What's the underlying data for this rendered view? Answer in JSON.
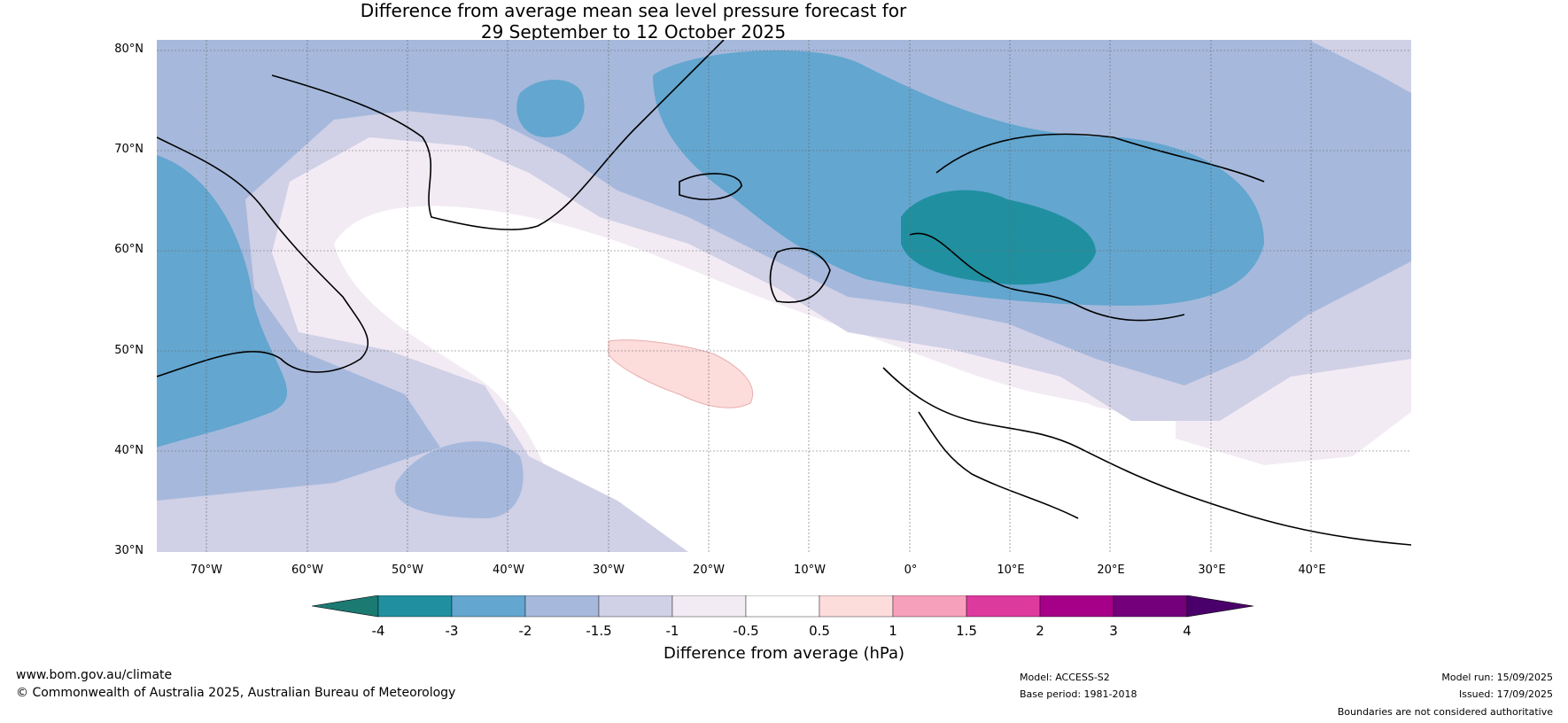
{
  "title": {
    "line1": "Difference from average mean sea level pressure forecast for",
    "line2": "29 September to 12 October 2025"
  },
  "map": {
    "lat_labels": [
      "80°N",
      "70°N",
      "60°N",
      "50°N",
      "40°N",
      "30°N"
    ],
    "lon_labels": [
      "70°W",
      "60°W",
      "50°W",
      "40°W",
      "30°W",
      "20°W",
      "10°W",
      "0°",
      "10°E",
      "20°E",
      "30°E",
      "40°E"
    ]
  },
  "colorbar": {
    "ticks": [
      "-4",
      "-3",
      "-2",
      "-1.5",
      "-1",
      "-0.5",
      "0.5",
      "1",
      "1.5",
      "2",
      "3",
      "4"
    ],
    "colors": [
      "#1b7a72",
      "#2090a0",
      "#63a6cf",
      "#a6b9dc",
      "#d0d0e6",
      "#f3ebf4",
      "#ffffff",
      "#fddcdc",
      "#f7a0bc",
      "#dd3a9e",
      "#a60088",
      "#74007c",
      "#4a006a"
    ],
    "label": "Difference from average (hPa)"
  },
  "footer": {
    "website": "www.bom.gov.au/climate",
    "copyright": "© Commonwealth of Australia 2025, Australian Bureau of Meteorology",
    "model": "Model: ACCESS-S2",
    "base_period": "Base period: 1981-2018",
    "model_run": "Model run: 15/09/2025",
    "issued": "Issued: 17/09/2025",
    "disclaimer": "Boundaries are not considered authoritative"
  }
}
